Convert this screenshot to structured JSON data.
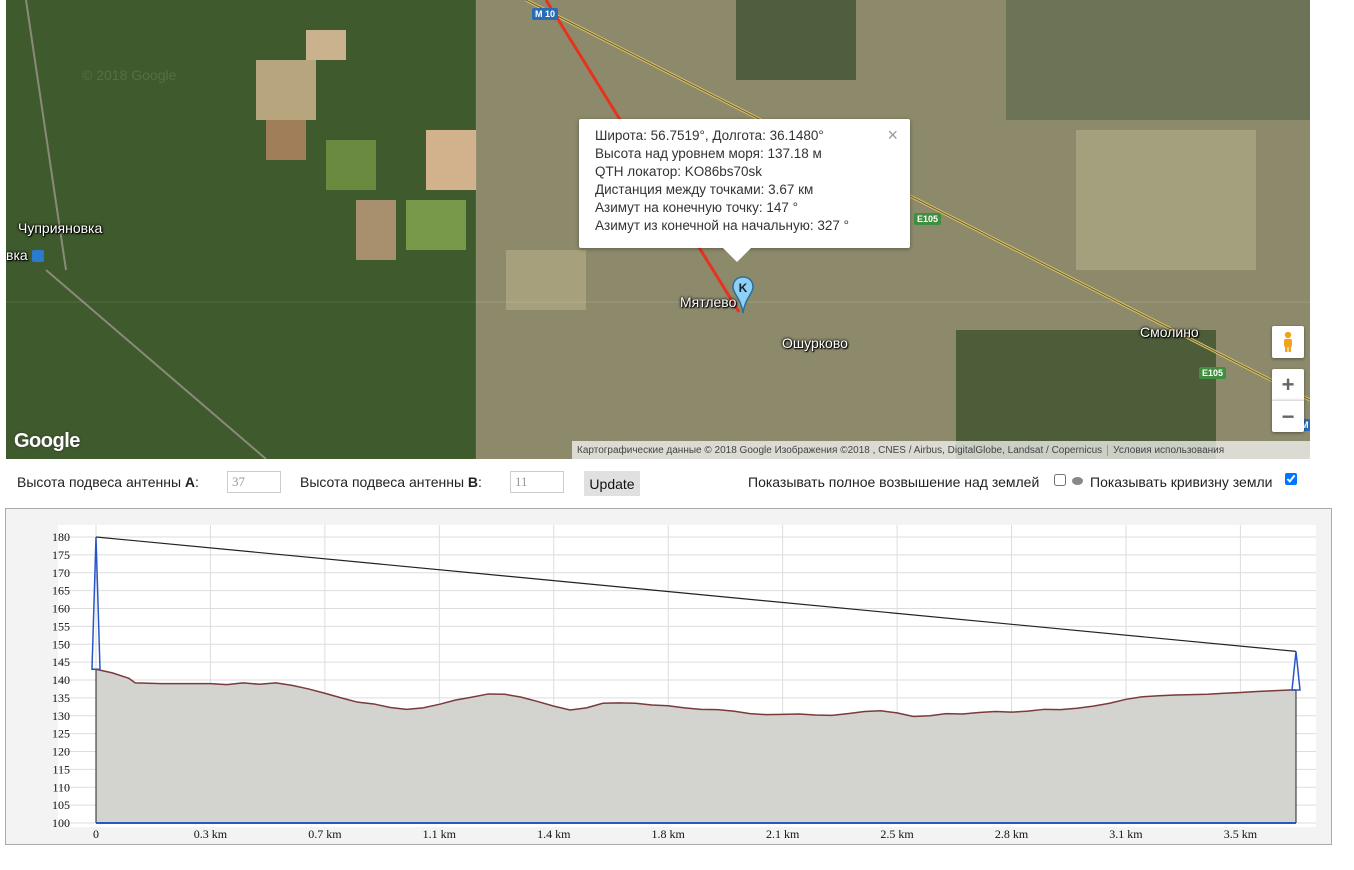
{
  "map": {
    "places": [
      {
        "id": "chupriyanovka",
        "name": "Чуприяновка"
      },
      {
        "id": "station",
        "name": "вка"
      },
      {
        "id": "myatlevo",
        "name": "Мятлево"
      },
      {
        "id": "oshurkovo",
        "name": "Ошурково"
      },
      {
        "id": "smolino",
        "name": "Смолино"
      }
    ],
    "road_shields": [
      "M 10",
      "E105",
      "E105",
      "M"
    ],
    "logo": "Google",
    "watermark": "© 2018 Google",
    "attribution": "Картографические данные © 2018 Google Изображения ©2018 , CNES / Airbus, DigitalGlobe, Landsat / Copernicus",
    "terms": "Условия использования",
    "marker_letter": "K",
    "pegman_icon": "pegman-icon",
    "zoom_in": "+",
    "zoom_out": "−",
    "route_color": "#e8321e"
  },
  "infowindow": {
    "lines": [
      "Широта: 56.7519°, Долгота: 36.1480°",
      "Высота над уровнем моря: 137.18 м",
      "QTH локатор: KO86bs70sk",
      "Дистанция между точками: 3.67 км",
      "Азимут на конечную точку: 147 °",
      "Азимут из конечной на начальную: 327 °"
    ],
    "close": "×"
  },
  "controls": {
    "antenna_a_label": "Высота подвеса антенны ",
    "antenna_a_letter": "A",
    "antenna_a_value": "37",
    "antenna_b_label": "Высота подвеса антенны ",
    "antenna_b_letter": "B",
    "antenna_b_value": "11",
    "update_label": "Update",
    "full_elevation_label": "Показывать полное возвышение над землей",
    "full_elevation_checked": false,
    "curvature_label": "Показывать кривизну земли",
    "curvature_checked": true
  },
  "chart_data": {
    "type": "area",
    "x_unit": "km",
    "ylim": [
      100,
      182
    ],
    "xlim": [
      0,
      3.67
    ],
    "yticks": [
      100,
      105,
      110,
      115,
      120,
      125,
      130,
      135,
      140,
      145,
      150,
      155,
      160,
      165,
      170,
      175,
      180
    ],
    "xticks": [
      {
        "v": 0,
        "label": "0"
      },
      {
        "v": 0.35,
        "label": "0.3 km"
      },
      {
        "v": 0.7,
        "label": "0.7 km"
      },
      {
        "v": 1.05,
        "label": "1.1 km"
      },
      {
        "v": 1.4,
        "label": "1.4 km"
      },
      {
        "v": 1.75,
        "label": "1.8 km"
      },
      {
        "v": 2.1,
        "label": "2.1 km"
      },
      {
        "v": 2.45,
        "label": "2.5 km"
      },
      {
        "v": 2.8,
        "label": "2.8 km"
      },
      {
        "v": 3.15,
        "label": "3.1 km"
      },
      {
        "v": 3.5,
        "label": "3.5 km"
      }
    ],
    "grid": true,
    "terrain": [
      [
        0,
        143
      ],
      [
        0.05,
        142
      ],
      [
        0.1,
        140.5
      ],
      [
        0.12,
        139.2
      ],
      [
        0.2,
        139
      ],
      [
        0.3,
        139
      ],
      [
        0.35,
        139
      ],
      [
        0.4,
        138.7
      ],
      [
        0.45,
        139.2
      ],
      [
        0.5,
        138.8
      ],
      [
        0.55,
        139.2
      ],
      [
        0.6,
        138.5
      ],
      [
        0.65,
        137.5
      ],
      [
        0.7,
        136.3
      ],
      [
        0.75,
        135
      ],
      [
        0.8,
        133.8
      ],
      [
        0.85,
        133.3
      ],
      [
        0.9,
        132.3
      ],
      [
        0.95,
        131.8
      ],
      [
        1.0,
        132.2
      ],
      [
        1.05,
        133.2
      ],
      [
        1.1,
        134.4
      ],
      [
        1.15,
        135.2
      ],
      [
        1.2,
        136.1
      ],
      [
        1.25,
        136
      ],
      [
        1.3,
        135.2
      ],
      [
        1.35,
        134
      ],
      [
        1.4,
        132.7
      ],
      [
        1.45,
        131.6
      ],
      [
        1.5,
        132.2
      ],
      [
        1.55,
        133.5
      ],
      [
        1.6,
        133.6
      ],
      [
        1.65,
        133.5
      ],
      [
        1.7,
        133
      ],
      [
        1.75,
        132.8
      ],
      [
        1.8,
        132.2
      ],
      [
        1.85,
        131.8
      ],
      [
        1.9,
        131.7
      ],
      [
        1.95,
        131.3
      ],
      [
        2.0,
        130.6
      ],
      [
        2.05,
        130.3
      ],
      [
        2.1,
        130.4
      ],
      [
        2.15,
        130.5
      ],
      [
        2.2,
        130.2
      ],
      [
        2.25,
        130.1
      ],
      [
        2.3,
        130.6
      ],
      [
        2.35,
        131.2
      ],
      [
        2.4,
        131.4
      ],
      [
        2.45,
        130.8
      ],
      [
        2.5,
        129.8
      ],
      [
        2.55,
        130
      ],
      [
        2.6,
        130.6
      ],
      [
        2.65,
        130.5
      ],
      [
        2.7,
        130.9
      ],
      [
        2.75,
        131.2
      ],
      [
        2.8,
        131
      ],
      [
        2.85,
        131.3
      ],
      [
        2.9,
        131.8
      ],
      [
        2.95,
        131.7
      ],
      [
        3.0,
        132.1
      ],
      [
        3.05,
        132.7
      ],
      [
        3.1,
        133.5
      ],
      [
        3.15,
        134.6
      ],
      [
        3.2,
        135.3
      ],
      [
        3.25,
        135.6
      ],
      [
        3.3,
        135.8
      ],
      [
        3.35,
        135.9
      ],
      [
        3.4,
        136
      ],
      [
        3.45,
        136.3
      ],
      [
        3.5,
        136.5
      ],
      [
        3.55,
        136.8
      ],
      [
        3.6,
        137
      ],
      [
        3.65,
        137.2
      ],
      [
        3.67,
        137.2
      ]
    ],
    "antenna_a": {
      "base": 143,
      "top": 180
    },
    "antenna_b": {
      "base": 137.2,
      "top": 148
    },
    "los": [
      [
        0,
        180
      ],
      [
        3.67,
        148
      ]
    ],
    "colors": {
      "terrain_fill": "#d3d3cf",
      "terrain_line": "#7a3b3b",
      "antenna": "#2956c7",
      "los": "#222222",
      "grid": "#dddddd"
    }
  }
}
